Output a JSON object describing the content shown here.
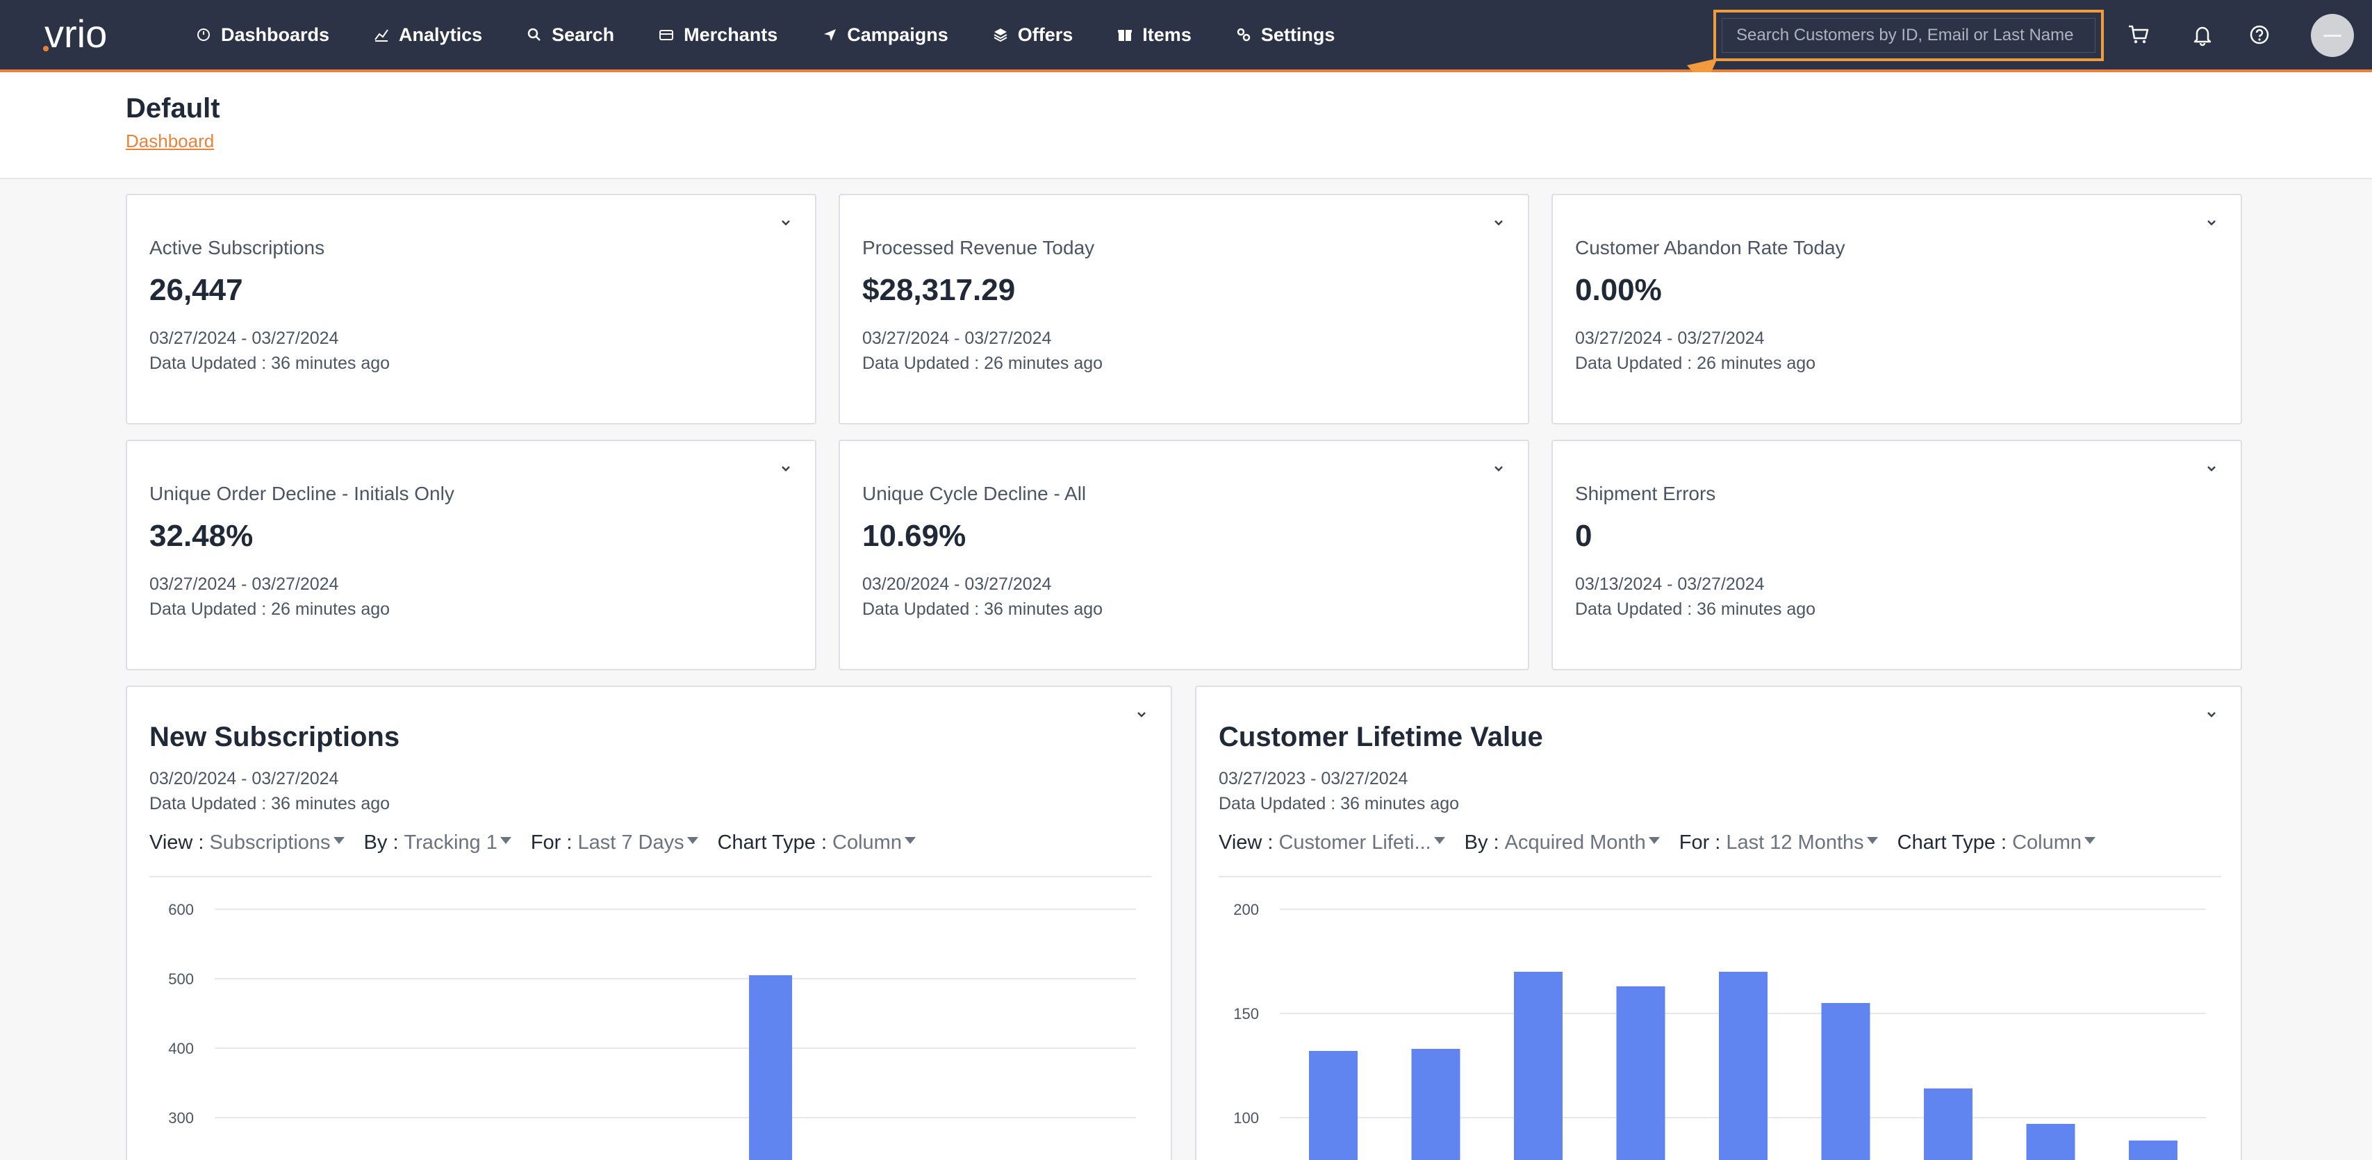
{
  "app": {
    "logo_text": "vrio"
  },
  "nav": {
    "items": [
      {
        "label": "Dashboards",
        "icon": "dashboard-icon"
      },
      {
        "label": "Analytics",
        "icon": "analytics-icon"
      },
      {
        "label": "Search",
        "icon": "search-icon"
      },
      {
        "label": "Merchants",
        "icon": "merchants-icon"
      },
      {
        "label": "Campaigns",
        "icon": "campaigns-icon"
      },
      {
        "label": "Offers",
        "icon": "offers-icon"
      },
      {
        "label": "Items",
        "icon": "items-icon"
      },
      {
        "label": "Settings",
        "icon": "settings-icon"
      }
    ],
    "search_placeholder": "Search Customers by ID, Email or Last Name"
  },
  "colors": {
    "nav_bg": "#2c3347",
    "accent": "#e8823a",
    "highlight": "#f19a3e",
    "bar": "#6185f0"
  },
  "header": {
    "title": "Default",
    "breadcrumb": "Dashboard"
  },
  "kpis": [
    {
      "label": "Active Subscriptions",
      "value": "26,447",
      "range": "03/27/2024 - 03/27/2024",
      "updated": "Data Updated : 36 minutes ago"
    },
    {
      "label": "Processed Revenue Today",
      "value": "$28,317.29",
      "range": "03/27/2024 - 03/27/2024",
      "updated": "Data Updated : 26 minutes ago"
    },
    {
      "label": "Customer Abandon Rate Today",
      "value": "0.00%",
      "range": "03/27/2024 - 03/27/2024",
      "updated": "Data Updated : 26 minutes ago"
    },
    {
      "label": "Unique Order Decline - Initials Only",
      "value": "32.48%",
      "range": "03/27/2024 - 03/27/2024",
      "updated": "Data Updated : 26 minutes ago"
    },
    {
      "label": "Unique Cycle Decline - All",
      "value": "10.69%",
      "range": "03/20/2024 - 03/27/2024",
      "updated": "Data Updated : 36 minutes ago"
    },
    {
      "label": "Shipment Errors",
      "value": "0",
      "range": "03/13/2024 - 03/27/2024",
      "updated": "Data Updated : 36 minutes ago"
    }
  ],
  "charts": [
    {
      "title": "New Subscriptions",
      "range": "03/20/2024 - 03/27/2024",
      "updated": "Data Updated : 36 minutes ago",
      "controls": [
        {
          "key": "View :",
          "value": "Subscriptions"
        },
        {
          "key": "By :",
          "value": "Tracking 1"
        },
        {
          "key": "For :",
          "value": "Last 7 Days"
        },
        {
          "key": "Chart Type :",
          "value": "Column"
        }
      ]
    },
    {
      "title": "Customer Lifetime Value",
      "range": "03/27/2023 - 03/27/2024",
      "updated": "Data Updated : 36 minutes ago",
      "controls": [
        {
          "key": "View :",
          "value": "Customer Lifeti..."
        },
        {
          "key": "By :",
          "value": "Acquired Month"
        },
        {
          "key": "For :",
          "value": "Last 12 Months"
        },
        {
          "key": "Chart Type :",
          "value": "Column"
        }
      ]
    }
  ],
  "chart_data": [
    {
      "type": "bar",
      "title": "New Subscriptions",
      "yticks": [
        "600",
        "500",
        "400",
        "300"
      ],
      "ylim": [
        300,
        600
      ],
      "series": [
        {
          "values": [
            505
          ]
        }
      ],
      "bar_positions": [
        0.58
      ]
    },
    {
      "type": "bar",
      "title": "Customer Lifetime Value",
      "yticks": [
        "200",
        "150",
        "100"
      ],
      "ylim": [
        100,
        200
      ],
      "series": [
        {
          "values": [
            132,
            133,
            170,
            163,
            170,
            155,
            114,
            97,
            89
          ]
        }
      ]
    }
  ]
}
